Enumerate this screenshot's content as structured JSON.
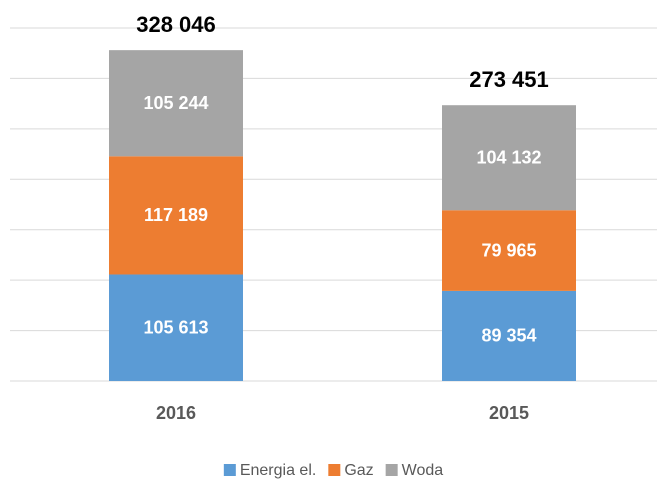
{
  "chart_data": {
    "type": "stacked_bar",
    "categories": [
      "2016",
      "2015"
    ],
    "series": [
      {
        "name": "Energia el.",
        "color": "#5b9bd5",
        "values": [
          105613,
          89354
        ],
        "value_labels": [
          "105 613",
          "89 354"
        ]
      },
      {
        "name": "Gaz",
        "color": "#ed7d31",
        "values": [
          117189,
          79965
        ],
        "value_labels": [
          "117 189",
          "79 965"
        ]
      },
      {
        "name": "Woda",
        "color": "#a5a5a5",
        "values": [
          105244,
          104132
        ],
        "value_labels": [
          "105 244",
          "104 132"
        ]
      }
    ],
    "totals": [
      328046,
      273451
    ],
    "total_labels": [
      "328 046",
      "273 451"
    ],
    "ylim": [
      0,
      350000
    ],
    "yticks": [
      0,
      50000,
      100000,
      150000,
      200000,
      250000,
      300000,
      350000
    ],
    "grid": true,
    "legend": "bottom"
  }
}
